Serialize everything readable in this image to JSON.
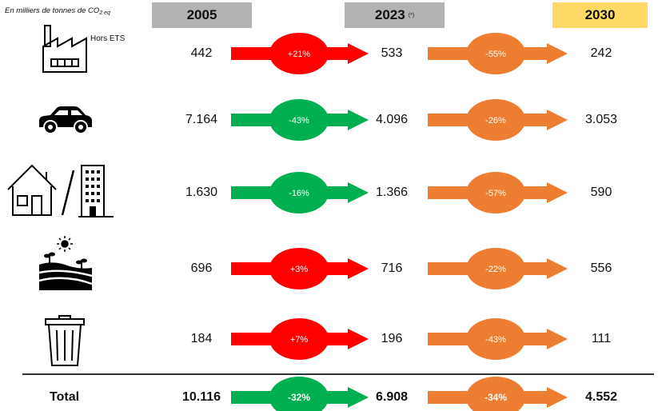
{
  "unit_note": {
    "prefix": "En milliers de tonnes de CO",
    "sub": "2 eq"
  },
  "headers": {
    "y2005": "2005",
    "y2023": "2023",
    "y2023_note": "(*)",
    "y2030": "2030"
  },
  "industry_note": "Hors ETS",
  "total_label": "Total",
  "colors": {
    "increase": "#ff0000",
    "decrease": "#00b050",
    "target": "#ed7d31",
    "header_grey": "#b3b3b3",
    "header_yellow": "#ffd965"
  },
  "chart_data": {
    "type": "table",
    "columns": [
      "2005",
      "2023",
      "2030"
    ],
    "rows": [
      {
        "sector": "industry-icon",
        "v2005": "442",
        "v2023": "533",
        "v2030": "242",
        "change_05_23": "+21%",
        "trend_05_23": "increase",
        "change_23_30": "-55%"
      },
      {
        "sector": "car-icon",
        "v2005": "7.164",
        "v2023": "4.096",
        "v2030": "3.053",
        "change_05_23": "-43%",
        "trend_05_23": "decrease",
        "change_23_30": "-26%"
      },
      {
        "sector": "buildings-icon",
        "v2005": "1.630",
        "v2023": "1.366",
        "v2030": "590",
        "change_05_23": "-16%",
        "trend_05_23": "decrease",
        "change_23_30": "-57%"
      },
      {
        "sector": "agriculture-icon",
        "v2005": "696",
        "v2023": "716",
        "v2030": "556",
        "change_05_23": "+3%",
        "trend_05_23": "increase",
        "change_23_30": "-22%"
      },
      {
        "sector": "waste-icon",
        "v2005": "184",
        "v2023": "196",
        "v2030": "111",
        "change_05_23": "+7%",
        "trend_05_23": "increase",
        "change_23_30": "-43%"
      }
    ],
    "total": {
      "v2005": "10.116",
      "v2023": "6.908",
      "v2030": "4.552",
      "change_05_23": "-32%",
      "trend_05_23": "decrease",
      "change_23_30": "-34%"
    }
  }
}
